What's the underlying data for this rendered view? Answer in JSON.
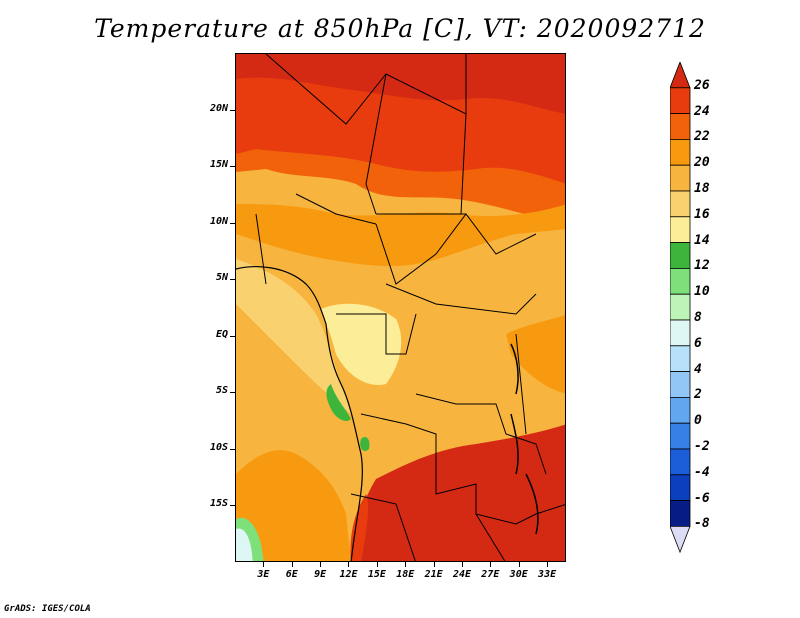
{
  "title": "Temperature at 850hPa [C], VT: 2020092712",
  "credit": "GrADS: IGES/COLA",
  "map": {
    "lat_labels": [
      {
        "text": "20N",
        "lat": 20
      },
      {
        "text": "15N",
        "lat": 15
      },
      {
        "text": "10N",
        "lat": 10
      },
      {
        "text": "5N",
        "lat": 5
      },
      {
        "text": "EQ",
        "lat": 0
      },
      {
        "text": "5S",
        "lat": -5
      },
      {
        "text": "10S",
        "lat": -10
      },
      {
        "text": "15S",
        "lat": -15
      }
    ],
    "lon_labels": [
      {
        "text": "3E",
        "lon": 3
      },
      {
        "text": "6E",
        "lon": 6
      },
      {
        "text": "9E",
        "lon": 9
      },
      {
        "text": "12E",
        "lon": 12
      },
      {
        "text": "15E",
        "lon": 15
      },
      {
        "text": "18E",
        "lon": 18
      },
      {
        "text": "21E",
        "lon": 21
      },
      {
        "text": "24E",
        "lon": 24
      },
      {
        "text": "27E",
        "lon": 27
      },
      {
        "text": "30E",
        "lon": 30
      },
      {
        "text": "33E",
        "lon": 33
      }
    ],
    "lon_range": [
      0,
      35
    ],
    "lat_range": [
      -20,
      25
    ]
  },
  "colorbar": {
    "levels": [
      "26",
      "24",
      "22",
      "20",
      "18",
      "16",
      "14",
      "12",
      "10",
      "8",
      "6",
      "4",
      "2",
      "0",
      "-2",
      "-4",
      "-6",
      "-8"
    ],
    "colors": [
      "#d42a14",
      "#e83c0e",
      "#f2620a",
      "#f79a10",
      "#f7b540",
      "#f9d26f",
      "#fcee98",
      "#3cb53a",
      "#7ee07a",
      "#bcf5b7",
      "#dff7f4",
      "#b7e1fa",
      "#91c6f5",
      "#62a6f0",
      "#3780e6",
      "#1c5ed8",
      "#0c3fbd",
      "#081c86",
      "#dcdcf5"
    ]
  }
}
